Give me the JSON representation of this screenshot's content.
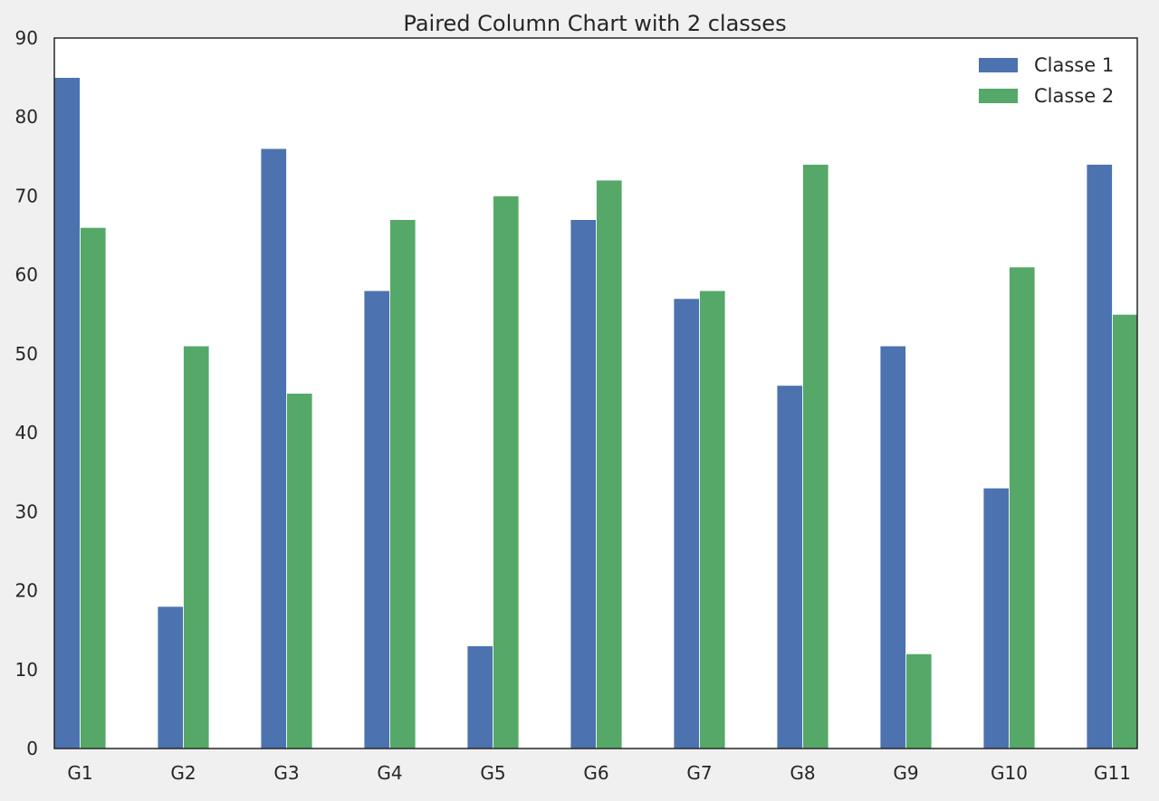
{
  "chart_data": {
    "type": "bar",
    "title": "Paired Column Chart with 2 classes",
    "xlabel": "",
    "ylabel": "",
    "categories": [
      "G1",
      "G2",
      "G3",
      "G4",
      "G5",
      "G6",
      "G7",
      "G8",
      "G9",
      "G10",
      "G11"
    ],
    "series": [
      {
        "name": "Classe 1",
        "color": "#4c72b0",
        "values": [
          85,
          18,
          76,
          58,
          13,
          67,
          57,
          46,
          51,
          33,
          74
        ]
      },
      {
        "name": "Classe 2",
        "color": "#55a868",
        "values": [
          66,
          51,
          45,
          67,
          70,
          72,
          58,
          74,
          12,
          61,
          55
        ]
      }
    ],
    "ylim": [
      0,
      90
    ],
    "yticks": [
      0,
      10,
      20,
      30,
      40,
      50,
      60,
      70,
      80,
      90
    ],
    "grid": false,
    "legend_position": "top-right"
  }
}
